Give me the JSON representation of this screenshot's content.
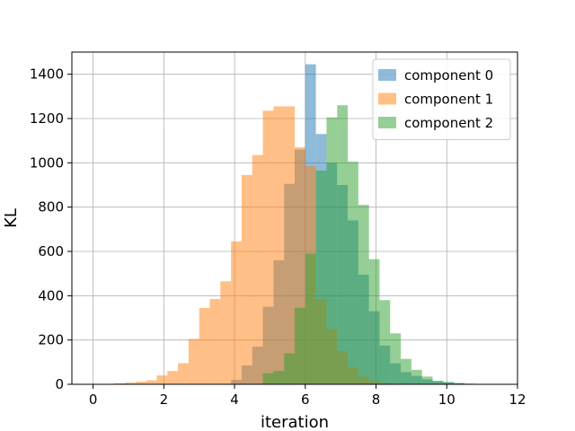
{
  "chart_data": {
    "type": "histogram",
    "title": "",
    "xlabel": "iteration",
    "ylabel": "KL",
    "xlim": [
      -0.6,
      12.0
    ],
    "ylim": [
      0,
      1500
    ],
    "xticks": [
      0,
      2,
      4,
      6,
      8,
      10,
      12
    ],
    "yticks": [
      0,
      200,
      400,
      600,
      800,
      1000,
      1200,
      1400
    ],
    "grid": true,
    "legend_position": "upper right",
    "series": [
      {
        "name": "component 0",
        "color": "#1f77b4",
        "alpha": 0.5,
        "bin_width": 0.3,
        "bins": [
          [
            3.9,
            20
          ],
          [
            4.2,
            85
          ],
          [
            4.5,
            170
          ],
          [
            4.8,
            350
          ],
          [
            5.1,
            560
          ],
          [
            5.4,
            905
          ],
          [
            5.7,
            1060
          ],
          [
            6.0,
            1445
          ],
          [
            6.3,
            1130
          ],
          [
            6.6,
            1000
          ],
          [
            6.9,
            900
          ],
          [
            7.2,
            740
          ],
          [
            7.5,
            495
          ],
          [
            7.8,
            330
          ],
          [
            8.1,
            175
          ],
          [
            8.4,
            95
          ],
          [
            8.7,
            55
          ],
          [
            9.0,
            38
          ],
          [
            9.3,
            22
          ],
          [
            9.6,
            15
          ],
          [
            9.9,
            10
          ],
          [
            10.2,
            6
          ],
          [
            10.5,
            3
          ]
        ]
      },
      {
        "name": "component 1",
        "color": "#ff7f0e",
        "alpha": 0.5,
        "bin_width": 0.3,
        "bins": [
          [
            0.6,
            5
          ],
          [
            0.9,
            8
          ],
          [
            1.2,
            12
          ],
          [
            1.5,
            18
          ],
          [
            1.8,
            40
          ],
          [
            2.1,
            60
          ],
          [
            2.4,
            95
          ],
          [
            2.7,
            205
          ],
          [
            3.0,
            345
          ],
          [
            3.3,
            385
          ],
          [
            3.6,
            465
          ],
          [
            3.9,
            645
          ],
          [
            4.2,
            945
          ],
          [
            4.5,
            1035
          ],
          [
            4.8,
            1235
          ],
          [
            5.1,
            1255
          ],
          [
            5.4,
            1255
          ],
          [
            5.7,
            1070
          ],
          [
            6.0,
            985
          ],
          [
            6.3,
            385
          ],
          [
            6.6,
            250
          ],
          [
            6.9,
            150
          ],
          [
            7.2,
            75
          ],
          [
            7.5,
            35
          ],
          [
            7.8,
            15
          ],
          [
            8.1,
            5
          ]
        ]
      },
      {
        "name": "component 2",
        "color": "#2ca02c",
        "alpha": 0.5,
        "bin_width": 0.3,
        "bins": [
          [
            4.8,
            50
          ],
          [
            5.1,
            60
          ],
          [
            5.4,
            140
          ],
          [
            5.7,
            345
          ],
          [
            6.0,
            590
          ],
          [
            6.3,
            965
          ],
          [
            6.6,
            1205
          ],
          [
            6.9,
            1260
          ],
          [
            7.2,
            1005
          ],
          [
            7.5,
            810
          ],
          [
            7.8,
            565
          ],
          [
            8.1,
            380
          ],
          [
            8.4,
            230
          ],
          [
            8.7,
            115
          ],
          [
            9.0,
            65
          ],
          [
            9.3,
            35
          ],
          [
            9.6,
            15
          ],
          [
            9.9,
            10
          ],
          [
            10.2,
            5
          ]
        ]
      }
    ]
  }
}
